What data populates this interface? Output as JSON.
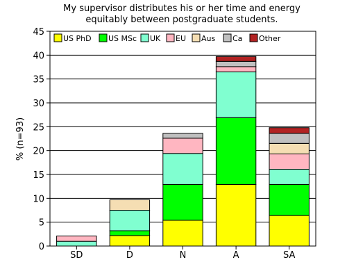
{
  "chart_data": {
    "type": "bar",
    "stacked": true,
    "title": [
      "My supervisor distributes his or her time and energy",
      "equitably between postgraduate students."
    ],
    "xlabel": "",
    "ylabel": "% (n=93)",
    "ylim": [
      0,
      45
    ],
    "yticks": [
      "0",
      "5",
      "10",
      "15",
      "20",
      "25",
      "30",
      "35",
      "40",
      "45"
    ],
    "grid": true,
    "legend_position": "top",
    "categories": [
      "SD",
      "D",
      "N",
      "A",
      "SA"
    ],
    "series": [
      {
        "name": "US PhD",
        "color": "#ffff00",
        "values": [
          0,
          2.2,
          5.4,
          12.9,
          6.4
        ]
      },
      {
        "name": "US MSc",
        "color": "#00ff00",
        "values": [
          0,
          1.0,
          7.5,
          14.0,
          6.5
        ]
      },
      {
        "name": "UK",
        "color": "#80ffd0",
        "values": [
          1.0,
          4.3,
          6.5,
          9.6,
          3.2
        ]
      },
      {
        "name": "EU",
        "color": "#ffb6c1",
        "values": [
          1.1,
          0,
          3.2,
          1.1,
          3.2
        ]
      },
      {
        "name": "Aus",
        "color": "#f5deb3",
        "values": [
          0,
          2.2,
          0,
          0,
          2.2
        ]
      },
      {
        "name": "Ca",
        "color": "#c0c0c0",
        "values": [
          0,
          0,
          1.0,
          1.1,
          2.1
        ]
      },
      {
        "name": "Other",
        "color": "#b22222",
        "values": [
          0,
          0,
          0,
          1.0,
          1.2
        ]
      }
    ]
  }
}
